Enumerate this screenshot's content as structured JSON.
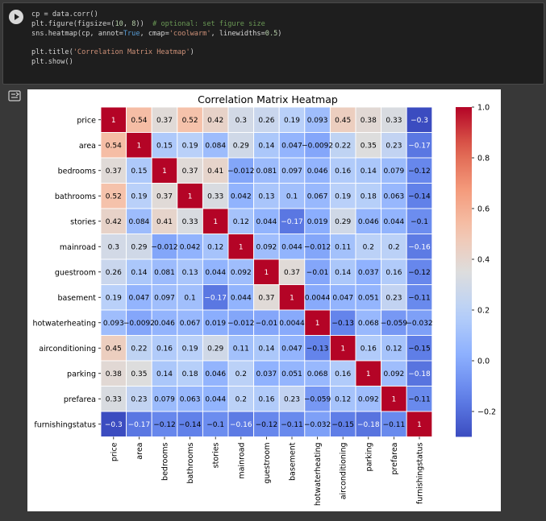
{
  "notebook": {
    "code_lines": [
      [
        {
          "t": "cp = data.corr()",
          "c": ""
        }
      ],
      [
        {
          "t": "plt.figure(figsize=(",
          "c": ""
        },
        {
          "t": "10",
          "c": "num"
        },
        {
          "t": ", ",
          "c": ""
        },
        {
          "t": "8",
          "c": "num"
        },
        {
          "t": "))  ",
          "c": ""
        },
        {
          "t": "# optional: set figure size",
          "c": "cmt"
        }
      ],
      [
        {
          "t": "sns.heatmap(cp, annot=",
          "c": ""
        },
        {
          "t": "True",
          "c": "kw"
        },
        {
          "t": ", cmap=",
          "c": ""
        },
        {
          "t": "'coolwarm'",
          "c": "str"
        },
        {
          "t": ", linewidths=",
          "c": ""
        },
        {
          "t": "0.5",
          "c": "num"
        },
        {
          "t": ")",
          "c": ""
        }
      ],
      [
        {
          "t": "",
          "c": ""
        }
      ],
      [
        {
          "t": "plt.title(",
          "c": ""
        },
        {
          "t": "'Correlation Matrix Heatmap'",
          "c": "str"
        },
        {
          "t": ")",
          "c": ""
        }
      ],
      [
        {
          "t": "plt.show()",
          "c": ""
        }
      ]
    ],
    "run_icon": "play-icon",
    "output_icon": "output-toggle-icon"
  },
  "chart_data": {
    "type": "heatmap",
    "title": "Correlation Matrix Heatmap",
    "colormap": "coolwarm",
    "categories": [
      "price",
      "area",
      "bedrooms",
      "bathrooms",
      "stories",
      "mainroad",
      "guestroom",
      "basement",
      "hotwaterheating",
      "airconditioning",
      "parking",
      "prefarea",
      "furnishingstatus"
    ],
    "values": [
      [
        1,
        0.54,
        0.37,
        0.52,
        0.42,
        0.3,
        0.26,
        0.19,
        0.093,
        0.45,
        0.38,
        0.33,
        -0.3
      ],
      [
        0.54,
        1,
        0.15,
        0.19,
        0.084,
        0.29,
        0.14,
        0.047,
        -0.0092,
        0.22,
        0.35,
        0.23,
        -0.17
      ],
      [
        0.37,
        0.15,
        1,
        0.37,
        0.41,
        -0.012,
        0.081,
        0.097,
        0.046,
        0.16,
        0.14,
        0.079,
        -0.12
      ],
      [
        0.52,
        0.19,
        0.37,
        1,
        0.33,
        0.042,
        0.13,
        0.1,
        0.067,
        0.19,
        0.18,
        0.063,
        -0.14
      ],
      [
        0.42,
        0.084,
        0.41,
        0.33,
        1,
        0.12,
        0.044,
        -0.17,
        0.019,
        0.29,
        0.046,
        0.044,
        -0.1
      ],
      [
        0.3,
        0.29,
        -0.012,
        0.042,
        0.12,
        1,
        0.092,
        0.044,
        -0.012,
        0.11,
        0.2,
        0.2,
        -0.16
      ],
      [
        0.26,
        0.14,
        0.081,
        0.13,
        0.044,
        0.092,
        1,
        0.37,
        -0.01,
        0.14,
        0.037,
        0.16,
        -0.12
      ],
      [
        0.19,
        0.047,
        0.097,
        0.1,
        -0.17,
        0.044,
        0.37,
        1,
        0.0044,
        0.047,
        0.051,
        0.23,
        -0.11
      ],
      [
        0.093,
        -0.0092,
        0.046,
        0.067,
        0.019,
        -0.012,
        -0.01,
        0.0044,
        1,
        -0.13,
        0.068,
        -0.059,
        -0.032
      ],
      [
        0.45,
        0.22,
        0.16,
        0.19,
        0.29,
        0.11,
        0.14,
        0.047,
        -0.13,
        1,
        0.16,
        0.12,
        -0.15
      ],
      [
        0.38,
        0.35,
        0.14,
        0.18,
        0.046,
        0.2,
        0.037,
        0.051,
        0.068,
        0.16,
        1,
        0.092,
        -0.18
      ],
      [
        0.33,
        0.23,
        0.079,
        0.063,
        0.044,
        0.2,
        0.16,
        0.23,
        -0.059,
        0.12,
        0.092,
        1,
        -0.11
      ],
      [
        -0.3,
        -0.17,
        -0.12,
        -0.14,
        -0.1,
        -0.16,
        -0.12,
        -0.11,
        -0.032,
        -0.15,
        -0.18,
        -0.11,
        1
      ]
    ],
    "colorbar": {
      "range": [
        -0.3,
        1.0
      ],
      "ticks": [
        1.0,
        0.8,
        0.6,
        0.4,
        0.2,
        0.0,
        -0.2
      ],
      "tick_labels": [
        "1.0",
        "0.8",
        "0.6",
        "0.4",
        "0.2",
        "0.0",
        "−0.2"
      ]
    }
  }
}
